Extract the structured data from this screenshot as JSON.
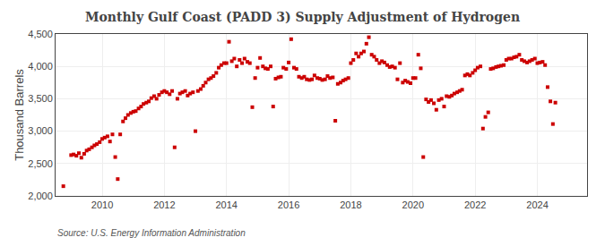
{
  "chart_data": {
    "type": "scatter",
    "title": "Monthly Gulf Coast (PADD 3) Supply Adjustment of Hydrogen",
    "ylabel": "Thousand Barrels",
    "annotations": [
      "Source: U.S. Energy Information Administration"
    ],
    "color": "#cc0000",
    "marker": "square",
    "grid": true,
    "xlim": [
      2008.5,
      2025.6
    ],
    "xticks": [
      2010,
      2012,
      2014,
      2016,
      2018,
      2020,
      2022,
      2024
    ],
    "ylim": [
      2000,
      4500
    ],
    "yticks": [
      {
        "value": 2000,
        "label": "2,000"
      },
      {
        "value": 2500,
        "label": "2,500"
      },
      {
        "value": 3000,
        "label": "3,000"
      },
      {
        "value": 3500,
        "label": "3,500"
      },
      {
        "value": 4000,
        "label": "4,000"
      },
      {
        "value": 4500,
        "label": "4,500"
      }
    ],
    "x": [
      2008.75,
      2009.0,
      2009.08,
      2009.17,
      2009.25,
      2009.33,
      2009.42,
      2009.5,
      2009.58,
      2009.67,
      2009.75,
      2009.83,
      2009.92,
      2010.0,
      2010.08,
      2010.17,
      2010.25,
      2010.33,
      2010.42,
      2010.5,
      2010.58,
      2010.67,
      2010.75,
      2010.83,
      2010.92,
      2011.0,
      2011.08,
      2011.17,
      2011.25,
      2011.33,
      2011.42,
      2011.5,
      2011.58,
      2011.67,
      2011.75,
      2011.83,
      2011.92,
      2012.0,
      2012.08,
      2012.17,
      2012.25,
      2012.33,
      2012.42,
      2012.5,
      2012.58,
      2012.67,
      2012.75,
      2012.83,
      2012.92,
      2013.0,
      2013.08,
      2013.17,
      2013.25,
      2013.33,
      2013.42,
      2013.5,
      2013.58,
      2013.67,
      2013.75,
      2013.83,
      2013.92,
      2014.0,
      2014.08,
      2014.17,
      2014.25,
      2014.33,
      2014.42,
      2014.5,
      2014.58,
      2014.67,
      2014.75,
      2014.83,
      2014.92,
      2015.0,
      2015.08,
      2015.17,
      2015.25,
      2015.33,
      2015.42,
      2015.5,
      2015.58,
      2015.67,
      2015.75,
      2015.83,
      2015.92,
      2016.0,
      2016.08,
      2016.17,
      2016.25,
      2016.33,
      2016.42,
      2016.5,
      2016.58,
      2016.67,
      2016.75,
      2016.83,
      2016.92,
      2017.0,
      2017.08,
      2017.17,
      2017.25,
      2017.33,
      2017.42,
      2017.5,
      2017.58,
      2017.67,
      2017.75,
      2017.83,
      2017.92,
      2018.0,
      2018.08,
      2018.17,
      2018.25,
      2018.33,
      2018.42,
      2018.5,
      2018.58,
      2018.67,
      2018.75,
      2018.83,
      2018.92,
      2019.0,
      2019.08,
      2019.17,
      2019.25,
      2019.33,
      2019.42,
      2019.5,
      2019.58,
      2019.67,
      2019.75,
      2019.83,
      2019.92,
      2020.0,
      2020.08,
      2020.17,
      2020.25,
      2020.33,
      2020.42,
      2020.5,
      2020.58,
      2020.67,
      2020.75,
      2020.83,
      2020.92,
      2021.0,
      2021.08,
      2021.17,
      2021.25,
      2021.33,
      2021.42,
      2021.5,
      2021.58,
      2021.67,
      2021.75,
      2021.83,
      2021.92,
      2022.0,
      2022.08,
      2022.17,
      2022.25,
      2022.33,
      2022.42,
      2022.5,
      2022.58,
      2022.67,
      2022.75,
      2022.83,
      2022.92,
      2023.0,
      2023.08,
      2023.17,
      2023.25,
      2023.33,
      2023.42,
      2023.5,
      2023.58,
      2023.67,
      2023.75,
      2023.83,
      2023.92,
      2024.0,
      2024.08,
      2024.17,
      2024.25,
      2024.33,
      2024.42,
      2024.5,
      2024.58
    ],
    "values": [
      2150,
      2630,
      2640,
      2620,
      2660,
      2590,
      2650,
      2700,
      2720,
      2750,
      2780,
      2800,
      2830,
      2880,
      2900,
      2920,
      2840,
      2950,
      2600,
      2260,
      2950,
      3150,
      3200,
      3250,
      3280,
      3300,
      3310,
      3350,
      3380,
      3420,
      3440,
      3460,
      3510,
      3540,
      3500,
      3560,
      3600,
      3620,
      3600,
      3570,
      3620,
      2750,
      3500,
      3580,
      3600,
      3620,
      3550,
      3580,
      3600,
      3000,
      3620,
      3650,
      3700,
      3750,
      3800,
      3820,
      3850,
      3900,
      3980,
      4020,
      4050,
      4050,
      4380,
      4080,
      4120,
      4000,
      4100,
      4050,
      4120,
      4070,
      4050,
      3370,
      3820,
      3980,
      4130,
      4000,
      3970,
      3960,
      4000,
      3380,
      3810,
      3830,
      3840,
      3980,
      3960,
      4060,
      4420,
      3980,
      3960,
      3840,
      3820,
      3840,
      3800,
      3790,
      3800,
      3860,
      3820,
      3810,
      3790,
      3800,
      3850,
      3820,
      3830,
      3160,
      3730,
      3750,
      3780,
      3800,
      3820,
      4050,
      4100,
      4200,
      4150,
      4200,
      4230,
      4350,
      4450,
      4180,
      4150,
      4100,
      4050,
      4080,
      4060,
      4020,
      3990,
      4000,
      3980,
      3800,
      4050,
      3750,
      3780,
      3760,
      3740,
      3820,
      3820,
      4180,
      3970,
      2600,
      3490,
      3450,
      3480,
      3430,
      3330,
      3480,
      3500,
      3380,
      3540,
      3530,
      3550,
      3580,
      3600,
      3620,
      3640,
      3860,
      3880,
      3860,
      3900,
      3940,
      3980,
      4000,
      3040,
      3220,
      3290,
      3960,
      3970,
      3990,
      4000,
      4010,
      4020,
      4100,
      4120,
      4120,
      4140,
      4150,
      4180,
      4100,
      4080,
      4060,
      4080,
      4100,
      4120,
      4050,
      4060,
      4070,
      4020,
      3680,
      3460,
      3110,
      3440
    ]
  }
}
